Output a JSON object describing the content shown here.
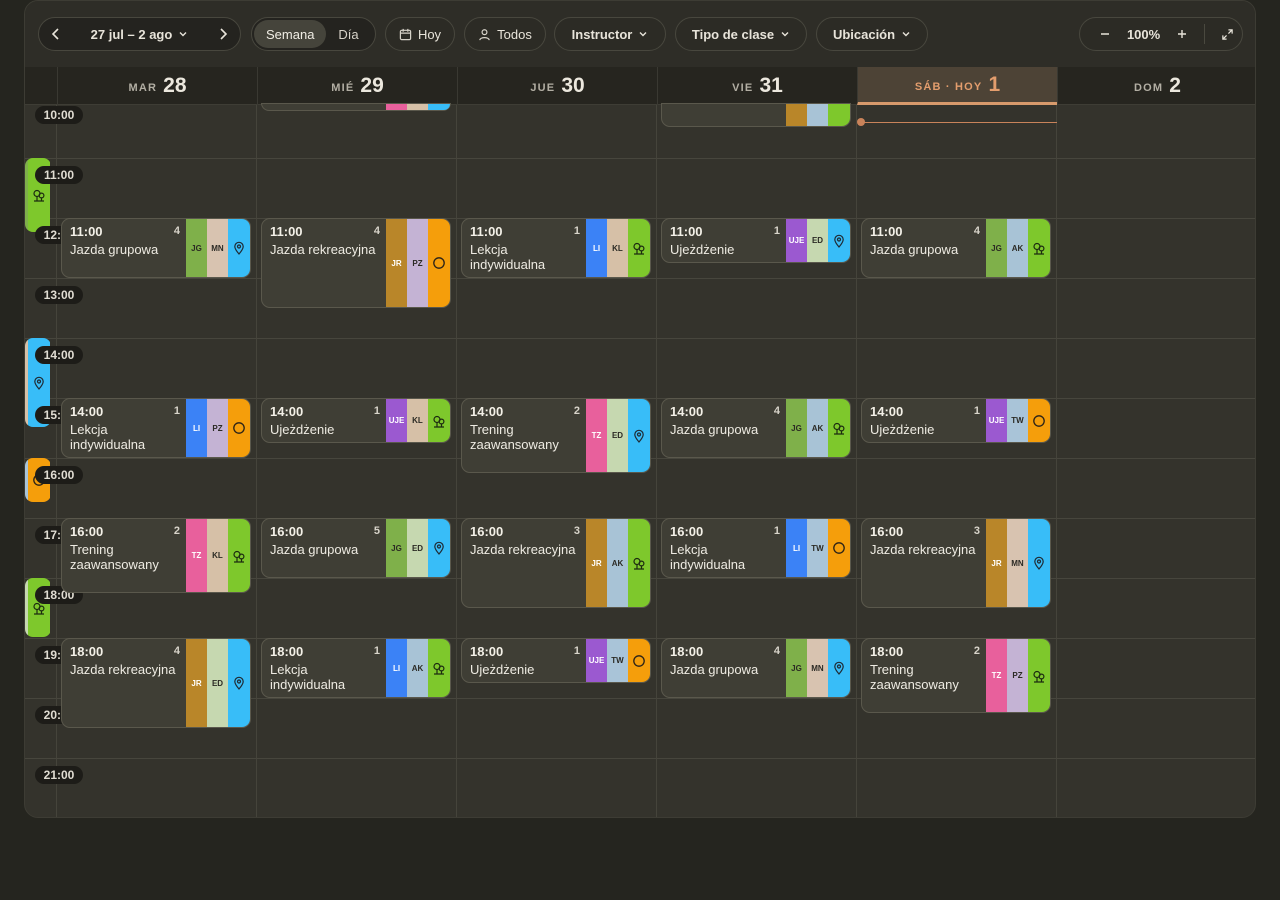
{
  "toolbar": {
    "date_range": "27 jul – 2 ago",
    "views": [
      "Semana",
      "Día"
    ],
    "active_view": "Semana",
    "today_label": "Hoy",
    "people_label": "Todos",
    "instructor_label": "Instructor",
    "class_type_label": "Tipo de clase",
    "location_label": "Ubicación",
    "zoom": "100%"
  },
  "days": [
    {
      "name": "MAR",
      "num": "28"
    },
    {
      "name": "MIÉ",
      "num": "29"
    },
    {
      "name": "JUE",
      "num": "30"
    },
    {
      "name": "VIE",
      "num": "31"
    },
    {
      "name": "SÁB · HOY",
      "num": "1",
      "today": true
    },
    {
      "name": "DOM",
      "num": "2"
    }
  ],
  "time_labels": [
    "10:00",
    "11:00",
    "12:00",
    "13:00",
    "14:00",
    "15:00",
    "16:00",
    "17:00",
    "18:00",
    "19:00",
    "20:00",
    "21:00"
  ],
  "colors": {
    "JG": "#7fb04a",
    "MN": "#d8c3b0",
    "LI": "#3b82f6",
    "KL": "#d6c0a7",
    "UJE": "#9b59d0",
    "ED": "#c6d8b0",
    "JR": "#b98629",
    "PZ": "#c4b3d4",
    "AK": "#a8c3d6",
    "TZ": "#e8609c",
    "TW": "#a9c4d8",
    "forest": "#7ec82c",
    "pin": "#38bdf8",
    "circle": "#f59e0b"
  },
  "events": [
    {
      "day": 0,
      "time": "11:00",
      "title": "Jazda grupowa",
      "count": "4",
      "tags": [
        "JG",
        "MN"
      ],
      "icon": "pin"
    },
    {
      "day": 1,
      "time": "11:00",
      "title": "Jazda rekreacyjna",
      "count": "4",
      "tags": [
        "JR",
        "PZ"
      ],
      "icon": "circle"
    },
    {
      "day": 2,
      "time": "11:00",
      "title": "Lekcja indywidualna",
      "count": "1",
      "tags": [
        "LI",
        "KL"
      ],
      "icon": "forest"
    },
    {
      "day": 3,
      "time": "11:00",
      "title": "Ujeżdżenie",
      "count": "1",
      "tags": [
        "UJE",
        "ED"
      ],
      "icon": "pin"
    },
    {
      "day": 4,
      "time": "11:00",
      "title": "Jazda grupowa",
      "count": "4",
      "tags": [
        "JG",
        "AK"
      ],
      "icon": "forest"
    },
    {
      "day": 0,
      "time": "14:00",
      "title": "Lekcja indywidualna",
      "count": "1",
      "tags": [
        "LI",
        "PZ"
      ],
      "icon": "circle"
    },
    {
      "day": 1,
      "time": "14:00",
      "title": "Ujeżdżenie",
      "count": "1",
      "tags": [
        "UJE",
        "KL"
      ],
      "icon": "forest"
    },
    {
      "day": 2,
      "time": "14:00",
      "title": "Trening zaawansowany",
      "count": "2",
      "tags": [
        "TZ",
        "ED"
      ],
      "icon": "pin"
    },
    {
      "day": 3,
      "time": "14:00",
      "title": "Jazda grupowa",
      "count": "4",
      "tags": [
        "JG",
        "AK"
      ],
      "icon": "forest"
    },
    {
      "day": 4,
      "time": "14:00",
      "title": "Ujeżdżenie",
      "count": "1",
      "tags": [
        "UJE",
        "TW"
      ],
      "icon": "circle"
    },
    {
      "day": 0,
      "time": "16:00",
      "title": "Trening zaawansowany",
      "count": "2",
      "tags": [
        "TZ",
        "KL"
      ],
      "icon": "forest"
    },
    {
      "day": 1,
      "time": "16:00",
      "title": "Jazda grupowa",
      "count": "5",
      "tags": [
        "JG",
        "ED"
      ],
      "icon": "pin"
    },
    {
      "day": 2,
      "time": "16:00",
      "title": "Jazda rekreacyjna",
      "count": "3",
      "tags": [
        "JR",
        "AK"
      ],
      "icon": "forest"
    },
    {
      "day": 3,
      "time": "16:00",
      "title": "Lekcja indywidualna",
      "count": "1",
      "tags": [
        "LI",
        "TW"
      ],
      "icon": "circle"
    },
    {
      "day": 4,
      "time": "16:00",
      "title": "Jazda rekreacyjna",
      "count": "3",
      "tags": [
        "JR",
        "MN"
      ],
      "icon": "pin"
    },
    {
      "day": 0,
      "time": "18:00",
      "title": "Jazda rekreacyjna",
      "count": "4",
      "tags": [
        "JR",
        "ED"
      ],
      "icon": "pin"
    },
    {
      "day": 1,
      "time": "18:00",
      "title": "Lekcja indywidualna",
      "count": "1",
      "tags": [
        "LI",
        "AK"
      ],
      "icon": "forest"
    },
    {
      "day": 2,
      "time": "18:00",
      "title": "Ujeżdżenie",
      "count": "1",
      "tags": [
        "UJE",
        "TW"
      ],
      "icon": "circle"
    },
    {
      "day": 3,
      "time": "18:00",
      "title": "Jazda grupowa",
      "count": "4",
      "tags": [
        "JG",
        "MN"
      ],
      "icon": "pin"
    },
    {
      "day": 4,
      "time": "18:00",
      "title": "Trening zaawansowany",
      "count": "2",
      "tags": [
        "TZ",
        "PZ"
      ],
      "icon": "forest"
    }
  ]
}
